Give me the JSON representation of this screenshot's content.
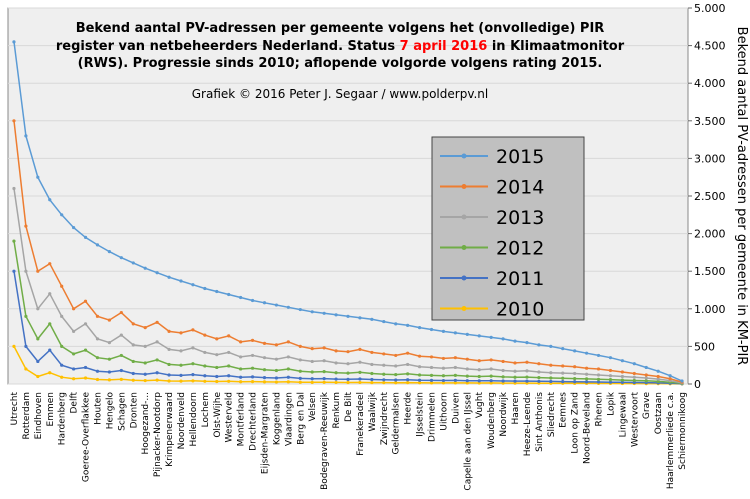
{
  "chart_data": {
    "type": "line",
    "title": {
      "line1": "Bekend aantal PV-adressen per gemeente volgens het (onvolledige)  PIR",
      "line2a": "register van netbeheerders Nederland. Status ",
      "date": "7 april 2016",
      "line2b": " in Klimaatmonitor",
      "line3": "(RWS). Progressie sinds 2010; aflopende volgorde volgens rating 2015."
    },
    "title_highlight_color": "#ff0000",
    "subtitle": "Grafiek  © 2016 Peter J. Segaar / www.polderpv.nl",
    "y_label": "Bekend aantal PV-adressen per gemeente in KM-PIR",
    "categories": [
      "Utrecht",
      "Rotterdam",
      "Eindhoven",
      "Emmen",
      "Hardenberg",
      "Delft",
      "Goeree-Overflakkee",
      "Houten",
      "Hengelo",
      "Schagen",
      "Dronten",
      "Hoogezand-...",
      "Pijnacker-Nootdorp",
      "Krimpenerwaard",
      "Noordenveld",
      "Hellendoorn",
      "Lochem",
      "Olst-Wijhe",
      "Westerveld",
      "Montferland",
      "Drechterland",
      "Eijsden-Margraten",
      "Koggenland",
      "Vlaardingen",
      "Berg en Dal",
      "Velsen",
      "Bodegraven-Reeuwijk",
      "Renkum",
      "De Bilt",
      "Franekeradeel",
      "Waalwijk",
      "Zwijndrecht",
      "Geldermalsen",
      "Heerde",
      "IJsselstein",
      "Drimmelen",
      "Uithoorn",
      "Duiven",
      "Capelle aan den IJssel",
      "Vught",
      "Woudenberg",
      "Noordwijk",
      "Haaren",
      "Heeze-Leende",
      "Sint Anthonis",
      "Sliedrecht",
      "Eemnes",
      "Loon op Zand",
      "Noord-Beveland",
      "Rhenen",
      "Lopik",
      "Lingewaal",
      "Westervoort",
      "Grave",
      "Oostzaan",
      "Haarlemmerliede c.a.",
      "Schiermonnikoog"
    ],
    "series": [
      {
        "name": "2015",
        "color": "#5b9bd5",
        "values": [
          4550,
          3300,
          2750,
          2450,
          2250,
          2080,
          1950,
          1850,
          1760,
          1680,
          1610,
          1540,
          1480,
          1420,
          1370,
          1320,
          1270,
          1230,
          1190,
          1150,
          1110,
          1080,
          1050,
          1020,
          990,
          960,
          940,
          920,
          900,
          880,
          860,
          830,
          800,
          780,
          750,
          725,
          700,
          680,
          660,
          640,
          620,
          600,
          570,
          550,
          520,
          500,
          470,
          440,
          410,
          380,
          350,
          310,
          270,
          220,
          170,
          110,
          40
        ]
      },
      {
        "name": "2014",
        "color": "#ed7d31",
        "values": [
          3500,
          2100,
          1500,
          1600,
          1300,
          1000,
          1100,
          900,
          850,
          950,
          800,
          750,
          820,
          700,
          680,
          720,
          650,
          600,
          640,
          560,
          580,
          540,
          520,
          560,
          500,
          470,
          480,
          440,
          430,
          460,
          420,
          400,
          380,
          410,
          370,
          360,
          340,
          350,
          330,
          310,
          320,
          300,
          280,
          290,
          270,
          250,
          240,
          230,
          210,
          200,
          180,
          160,
          140,
          120,
          100,
          70,
          25
        ]
      },
      {
        "name": "2013",
        "color": "#a5a5a5",
        "values": [
          2600,
          1500,
          1000,
          1200,
          900,
          700,
          800,
          600,
          550,
          650,
          520,
          500,
          560,
          460,
          440,
          480,
          420,
          390,
          420,
          360,
          380,
          350,
          330,
          360,
          320,
          300,
          310,
          280,
          270,
          290,
          260,
          250,
          240,
          260,
          230,
          220,
          210,
          220,
          200,
          190,
          200,
          180,
          170,
          175,
          160,
          150,
          145,
          140,
          130,
          120,
          110,
          100,
          90,
          80,
          65,
          45,
          15
        ]
      },
      {
        "name": "2012",
        "color": "#70ad47",
        "values": [
          1900,
          900,
          600,
          800,
          500,
          400,
          450,
          350,
          330,
          380,
          300,
          280,
          320,
          260,
          250,
          270,
          240,
          220,
          240,
          200,
          210,
          190,
          180,
          200,
          170,
          160,
          165,
          150,
          145,
          155,
          140,
          130,
          125,
          135,
          120,
          115,
          110,
          115,
          105,
          100,
          105,
          95,
          90,
          92,
          85,
          80,
          76,
          72,
          68,
          62,
          58,
          52,
          47,
          42,
          34,
          24,
          8
        ]
      },
      {
        "name": "2011",
        "color": "#4472c4",
        "values": [
          1500,
          500,
          300,
          450,
          250,
          200,
          220,
          170,
          160,
          180,
          140,
          130,
          150,
          120,
          115,
          125,
          110,
          100,
          110,
          90,
          95,
          85,
          80,
          90,
          75,
          70,
          72,
          65,
          62,
          66,
          60,
          56,
          53,
          57,
          50,
          48,
          46,
          48,
          44,
          42,
          44,
          40,
          38,
          39,
          36,
          34,
          32,
          30,
          28,
          26,
          24,
          22,
          20,
          18,
          15,
          10,
          3
        ]
      },
      {
        "name": "2010",
        "color": "#ffc000",
        "values": [
          500,
          200,
          100,
          150,
          90,
          70,
          80,
          60,
          55,
          62,
          50,
          45,
          52,
          40,
          38,
          42,
          36,
          33,
          36,
          30,
          32,
          28,
          26,
          29,
          24,
          22,
          23,
          21,
          20,
          21,
          19,
          18,
          17,
          18,
          16,
          15,
          15,
          15,
          14,
          13,
          14,
          12,
          12,
          12,
          11,
          10,
          10,
          9,
          9,
          8,
          8,
          7,
          6,
          5,
          5,
          3,
          1
        ]
      }
    ],
    "ylim": [
      0,
      5000
    ],
    "yticks": [
      0,
      {
        "value": 500,
        "label": "500"
      },
      {
        "value": 1000,
        "label": "1.000"
      },
      {
        "value": 1500,
        "label": "1.500"
      },
      {
        "value": 2000,
        "label": "2.000"
      },
      {
        "value": 2500,
        "label": "2.500"
      },
      {
        "value": 3000,
        "label": "3.000"
      },
      {
        "value": 3500,
        "label": "3.500"
      },
      {
        "value": 4000,
        "label": "4.000"
      },
      {
        "value": 4500,
        "label": "4.500"
      },
      {
        "value": 5000,
        "label": "5.000"
      }
    ],
    "grid": true,
    "y_axis_side": "right",
    "legend_position": "right"
  }
}
